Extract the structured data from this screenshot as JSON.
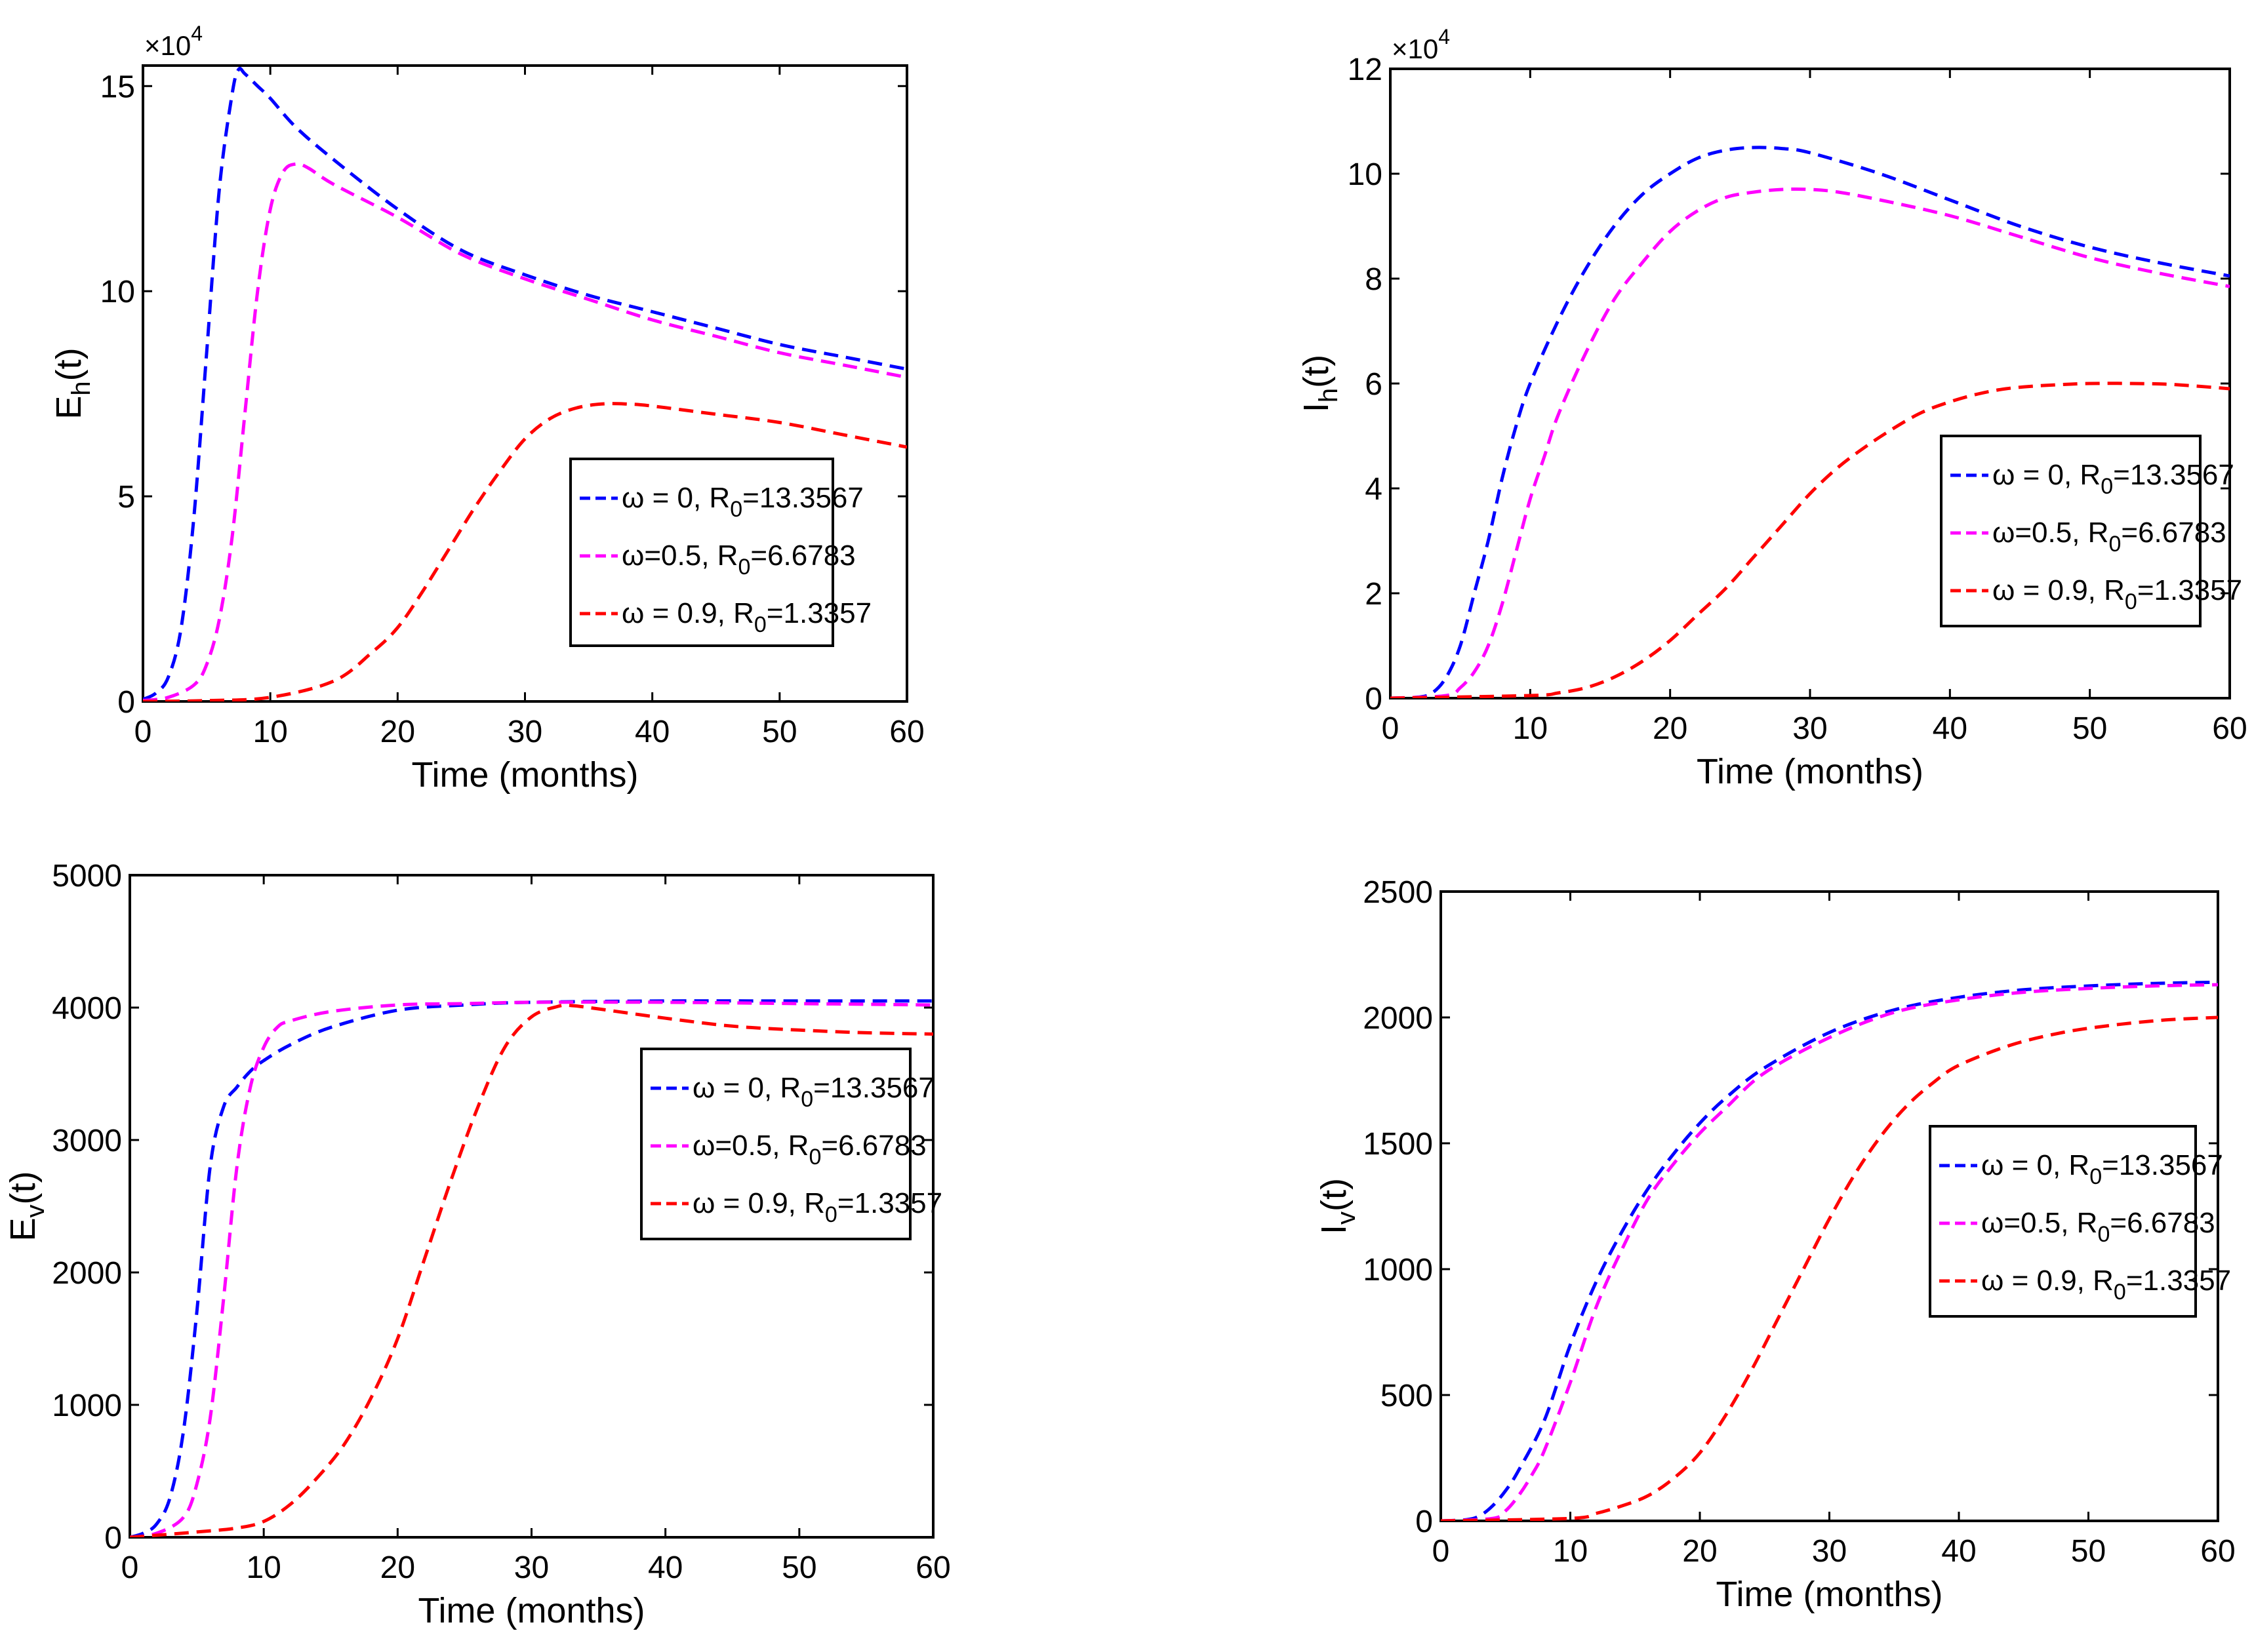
{
  "figure": {
    "charts": [
      {
        "id": "eh",
        "ylabel_main": "E",
        "ylabel_sub": "h",
        "ylabel_tail": "(t)",
        "exponent_label": "×10",
        "exponent_power": "4",
        "yticks": [
          "0",
          "5",
          "10",
          "15"
        ],
        "xticks": [
          "0",
          "10",
          "20",
          "30",
          "40",
          "50",
          "60"
        ],
        "xlabel": "Time (months)"
      },
      {
        "id": "ih",
        "ylabel_main": "I",
        "ylabel_sub": "h",
        "ylabel_tail": "(t)",
        "exponent_label": "×10",
        "exponent_power": "4",
        "yticks": [
          "0",
          "2",
          "4",
          "6",
          "8",
          "10",
          "12"
        ],
        "xticks": [
          "0",
          "10",
          "20",
          "30",
          "40",
          "50",
          "60"
        ],
        "xlabel": "Time (months)"
      },
      {
        "id": "ev",
        "ylabel_main": "E",
        "ylabel_sub": "v",
        "ylabel_tail": "(t)",
        "exponent_label": "",
        "exponent_power": "",
        "yticks": [
          "0",
          "1000",
          "2000",
          "3000",
          "4000",
          "5000"
        ],
        "xticks": [
          "0",
          "10",
          "20",
          "30",
          "40",
          "50",
          "60"
        ],
        "xlabel": "Time (months)"
      },
      {
        "id": "iv",
        "ylabel_main": "I",
        "ylabel_sub": "v",
        "ylabel_tail": "(t)",
        "exponent_label": "",
        "exponent_power": "",
        "yticks": [
          "0",
          "500",
          "1000",
          "1500",
          "2000",
          "2500"
        ],
        "xticks": [
          "0",
          "10",
          "20",
          "30",
          "40",
          "50",
          "60"
        ],
        "xlabel": "Time (months)"
      }
    ],
    "legend": [
      {
        "omega_part": "ω = 0, R",
        "sub": "0",
        "tail": "=13.3567",
        "color": "#0000ff"
      },
      {
        "omega_part": "ω=0.5, R",
        "sub": "0",
        "tail": "=6.6783",
        "color": "#ff00ff"
      },
      {
        "omega_part": "ω = 0.9, R",
        "sub": "0",
        "tail": "=1.3357",
        "color": "#ff0000"
      }
    ]
  },
  "chart_data": [
    {
      "type": "line",
      "title": "",
      "xlabel": "Time (months)",
      "ylabel": "E_h(t)",
      "y_multiplier": "×10^4",
      "xlim": [
        0,
        60
      ],
      "ylim": [
        0,
        15.5
      ],
      "legend_position": "center-right",
      "series": [
        {
          "name": "ω = 0, R0=13.3567",
          "color": "#0000ff",
          "x": [
            0,
            1,
            2,
            3,
            4,
            5,
            6,
            7,
            7.5,
            8,
            9,
            10,
            12,
            15,
            20,
            25,
            30,
            35,
            40,
            45,
            50,
            55,
            60
          ],
          "y": [
            0.05,
            0.2,
            0.6,
            1.8,
            4.5,
            8.5,
            12.5,
            14.8,
            15.4,
            15.3,
            15.0,
            14.7,
            14.0,
            13.2,
            12.0,
            11.0,
            10.4,
            9.9,
            9.5,
            9.1,
            8.7,
            8.4,
            8.1
          ]
        },
        {
          "name": "ω=0.5, R0=6.6783",
          "color": "#ff00ff",
          "x": [
            0,
            2,
            4,
            5,
            6,
            7,
            8,
            9,
            10,
            11,
            12,
            13,
            15,
            20,
            25,
            30,
            35,
            40,
            45,
            50,
            55,
            60
          ],
          "y": [
            0.02,
            0.1,
            0.4,
            0.9,
            2.0,
            4.0,
            7.0,
            10.0,
            12.0,
            12.9,
            13.1,
            13.0,
            12.6,
            11.8,
            10.9,
            10.3,
            9.8,
            9.3,
            8.9,
            8.5,
            8.2,
            7.9
          ]
        },
        {
          "name": "ω = 0.9, R0=1.3357",
          "color": "#ff0000",
          "x": [
            0,
            5,
            10,
            15,
            18,
            20,
            22,
            24,
            26,
            28,
            30,
            32,
            34,
            36,
            38,
            40,
            45,
            50,
            55,
            60
          ],
          "y": [
            0.0,
            0.02,
            0.1,
            0.5,
            1.2,
            1.8,
            2.7,
            3.7,
            4.7,
            5.6,
            6.4,
            6.9,
            7.15,
            7.25,
            7.25,
            7.2,
            7.0,
            6.8,
            6.5,
            6.2
          ]
        }
      ]
    },
    {
      "type": "line",
      "title": "",
      "xlabel": "Time (months)",
      "ylabel": "I_h(t)",
      "y_multiplier": "×10^4",
      "xlim": [
        0,
        60
      ],
      "ylim": [
        0,
        12
      ],
      "legend_position": "center-right",
      "series": [
        {
          "name": "ω = 0, R0=13.3567",
          "color": "#0000ff",
          "x": [
            0,
            2,
            3,
            4,
            5,
            6,
            7,
            8,
            9,
            10,
            12,
            14,
            16,
            18,
            20,
            22,
            24,
            26,
            28,
            30,
            35,
            40,
            45,
            50,
            55,
            60
          ],
          "y": [
            0,
            0.02,
            0.1,
            0.4,
            1.0,
            2.0,
            3.0,
            4.2,
            5.2,
            6.0,
            7.2,
            8.2,
            9.0,
            9.6,
            10.0,
            10.3,
            10.45,
            10.5,
            10.48,
            10.4,
            10.0,
            9.5,
            9.0,
            8.6,
            8.3,
            8.05
          ]
        },
        {
          "name": "ω=0.5, R0=6.6783",
          "color": "#ff00ff",
          "x": [
            0,
            4,
            5,
            6,
            7,
            8,
            9,
            10,
            11,
            12,
            14,
            16,
            18,
            20,
            22,
            24,
            26,
            28,
            30,
            32,
            35,
            40,
            45,
            50,
            55,
            60
          ],
          "y": [
            0,
            0.05,
            0.2,
            0.5,
            1.0,
            1.8,
            2.8,
            3.8,
            4.6,
            5.4,
            6.6,
            7.6,
            8.3,
            8.9,
            9.3,
            9.55,
            9.65,
            9.7,
            9.7,
            9.65,
            9.5,
            9.2,
            8.8,
            8.4,
            8.1,
            7.85
          ]
        },
        {
          "name": "ω = 0.9, R0=1.3357",
          "color": "#ff0000",
          "x": [
            0,
            10,
            12,
            14,
            16,
            18,
            20,
            22,
            24,
            26,
            28,
            30,
            32,
            34,
            36,
            38,
            40,
            42,
            44,
            46,
            48,
            50,
            53,
            56,
            60
          ],
          "y": [
            0,
            0.05,
            0.1,
            0.2,
            0.4,
            0.7,
            1.1,
            1.6,
            2.1,
            2.7,
            3.3,
            3.9,
            4.4,
            4.8,
            5.15,
            5.45,
            5.65,
            5.8,
            5.9,
            5.95,
            5.98,
            6.0,
            6.0,
            5.98,
            5.9
          ]
        }
      ]
    },
    {
      "type": "line",
      "title": "",
      "xlabel": "Time (months)",
      "ylabel": "E_v(t)",
      "xlim": [
        0,
        60
      ],
      "ylim": [
        0,
        5000
      ],
      "legend_position": "center-right",
      "series": [
        {
          "name": "ω = 0, R0=13.3567",
          "color": "#0000ff",
          "x": [
            0,
            1,
            2,
            3,
            4,
            5,
            6,
            7,
            8,
            9,
            10,
            12,
            15,
            20,
            25,
            30,
            40,
            50,
            60
          ],
          "y": [
            0,
            30,
            100,
            300,
            800,
            1700,
            2800,
            3250,
            3400,
            3520,
            3600,
            3720,
            3850,
            3980,
            4020,
            4040,
            4050,
            4050,
            4050
          ]
        },
        {
          "name": "ω=0.5, R0=6.6783",
          "color": "#ff00ff",
          "x": [
            0,
            2,
            4,
            5,
            6,
            7,
            8,
            9,
            10,
            11,
            12,
            15,
            20,
            25,
            30,
            40,
            50,
            60
          ],
          "y": [
            0,
            30,
            150,
            400,
            900,
            1800,
            2800,
            3400,
            3700,
            3850,
            3900,
            3970,
            4020,
            4030,
            4040,
            4040,
            4030,
            4020
          ]
        },
        {
          "name": "ω = 0.9, R0=1.3357",
          "color": "#ff0000",
          "x": [
            0,
            5,
            8,
            10,
            12,
            14,
            16,
            18,
            20,
            22,
            24,
            26,
            28,
            30,
            32,
            33,
            35,
            40,
            45,
            50,
            55,
            60
          ],
          "y": [
            0,
            40,
            70,
            120,
            250,
            450,
            700,
            1050,
            1500,
            2100,
            2700,
            3250,
            3700,
            3930,
            4010,
            4015,
            3990,
            3920,
            3860,
            3830,
            3810,
            3800
          ]
        }
      ]
    },
    {
      "type": "line",
      "title": "",
      "xlabel": "Time (months)",
      "ylabel": "I_v(t)",
      "xlim": [
        0,
        60
      ],
      "ylim": [
        0,
        2500
      ],
      "legend_position": "center-right",
      "series": [
        {
          "name": "ω = 0, R0=13.3567",
          "color": "#0000ff",
          "x": [
            0,
            2,
            3,
            4,
            5,
            6,
            8,
            10,
            12,
            14,
            16,
            18,
            20,
            22,
            25,
            30,
            35,
            40,
            45,
            50,
            55,
            60
          ],
          "y": [
            0,
            5,
            20,
            60,
            120,
            200,
            400,
            700,
            950,
            1150,
            1320,
            1460,
            1580,
            1680,
            1800,
            1940,
            2030,
            2080,
            2110,
            2125,
            2135,
            2140
          ]
        },
        {
          "name": "ω=0.5, R0=6.6783",
          "color": "#ff00ff",
          "x": [
            0,
            4,
            5,
            6,
            7,
            8,
            10,
            12,
            14,
            16,
            18,
            20,
            22,
            25,
            30,
            35,
            40,
            45,
            50,
            55,
            60
          ],
          "y": [
            0,
            10,
            40,
            100,
            180,
            280,
            550,
            850,
            1080,
            1280,
            1420,
            1540,
            1640,
            1780,
            1920,
            2020,
            2070,
            2100,
            2115,
            2125,
            2130
          ]
        },
        {
          "name": "ω = 0.9, R0=1.3357",
          "color": "#ff0000",
          "x": [
            0,
            10,
            12,
            14,
            16,
            18,
            20,
            22,
            24,
            26,
            28,
            30,
            32,
            34,
            36,
            38,
            40,
            44,
            48,
            52,
            56,
            60
          ],
          "y": [
            0,
            10,
            30,
            60,
            100,
            170,
            270,
            420,
            600,
            800,
            1000,
            1200,
            1380,
            1530,
            1650,
            1740,
            1810,
            1890,
            1940,
            1970,
            1990,
            2000
          ]
        }
      ]
    }
  ]
}
